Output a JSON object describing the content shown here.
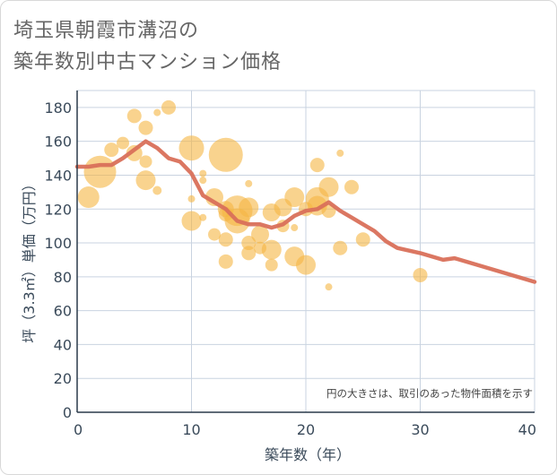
{
  "chart_data": {
    "type": "scatter",
    "title_lines": [
      "埼玉県朝霞市溝沼の",
      "築年数別中古マンション価格"
    ],
    "xlabel": "築年数（年）",
    "ylabel": "坪（3.3㎡）単価（万円）",
    "xlim": [
      0,
      40
    ],
    "ylim": [
      0,
      190
    ],
    "x_ticks": [
      0,
      10,
      20,
      30,
      40
    ],
    "y_ticks": [
      0,
      20,
      40,
      60,
      80,
      100,
      120,
      140,
      160,
      180
    ],
    "grid": true,
    "note": "円の大きさは、取引のあった物件面積を示す",
    "colors": {
      "bubble": "#f5b642",
      "line": "#d9705a",
      "grid": "#c9d3e0",
      "axis": "#2a3a4a"
    },
    "trend_line": [
      [
        0,
        145
      ],
      [
        1,
        145
      ],
      [
        2,
        146
      ],
      [
        3,
        146
      ],
      [
        4,
        150
      ],
      [
        5,
        155
      ],
      [
        6,
        160
      ],
      [
        7,
        156
      ],
      [
        8,
        150
      ],
      [
        9,
        148
      ],
      [
        10,
        141
      ],
      [
        11,
        128
      ],
      [
        12,
        124
      ],
      [
        13,
        120
      ],
      [
        14,
        113
      ],
      [
        15,
        111
      ],
      [
        16,
        111
      ],
      [
        17,
        109
      ],
      [
        18,
        111
      ],
      [
        19,
        116
      ],
      [
        20,
        119
      ],
      [
        21,
        120
      ],
      [
        22,
        124
      ],
      [
        23,
        119
      ],
      [
        24,
        115
      ],
      [
        25,
        111
      ],
      [
        26,
        107
      ],
      [
        27,
        101
      ],
      [
        28,
        97
      ],
      [
        30,
        94
      ],
      [
        32,
        90
      ],
      [
        33,
        91
      ],
      [
        35,
        87
      ],
      [
        40,
        77
      ]
    ],
    "points": [
      {
        "x": 1,
        "y": 127,
        "r": 12
      },
      {
        "x": 2,
        "y": 142,
        "r": 18
      },
      {
        "x": 3,
        "y": 155,
        "r": 8
      },
      {
        "x": 4,
        "y": 159,
        "r": 7
      },
      {
        "x": 5,
        "y": 175,
        "r": 8
      },
      {
        "x": 5,
        "y": 153,
        "r": 9
      },
      {
        "x": 6,
        "y": 168,
        "r": 8
      },
      {
        "x": 6,
        "y": 148,
        "r": 7
      },
      {
        "x": 6,
        "y": 137,
        "r": 11
      },
      {
        "x": 7,
        "y": 177,
        "r": 4
      },
      {
        "x": 7,
        "y": 131,
        "r": 5
      },
      {
        "x": 8,
        "y": 180,
        "r": 8
      },
      {
        "x": 10,
        "y": 156,
        "r": 14
      },
      {
        "x": 10,
        "y": 126,
        "r": 4
      },
      {
        "x": 10,
        "y": 113,
        "r": 11
      },
      {
        "x": 11,
        "y": 141,
        "r": 4
      },
      {
        "x": 11,
        "y": 137,
        "r": 4
      },
      {
        "x": 11,
        "y": 115,
        "r": 4
      },
      {
        "x": 12,
        "y": 127,
        "r": 10
      },
      {
        "x": 12,
        "y": 105,
        "r": 7
      },
      {
        "x": 13,
        "y": 152,
        "r": 19
      },
      {
        "x": 13,
        "y": 120,
        "r": 9
      },
      {
        "x": 13,
        "y": 117,
        "r": 8
      },
      {
        "x": 13,
        "y": 102,
        "r": 8
      },
      {
        "x": 13,
        "y": 89,
        "r": 8
      },
      {
        "x": 14,
        "y": 119,
        "r": 17
      },
      {
        "x": 14,
        "y": 113,
        "r": 14
      },
      {
        "x": 15,
        "y": 135,
        "r": 4
      },
      {
        "x": 15,
        "y": 121,
        "r": 11
      },
      {
        "x": 15,
        "y": 100,
        "r": 8
      },
      {
        "x": 15,
        "y": 94,
        "r": 8
      },
      {
        "x": 16,
        "y": 105,
        "r": 10
      },
      {
        "x": 16,
        "y": 97,
        "r": 7
      },
      {
        "x": 17,
        "y": 118,
        "r": 10
      },
      {
        "x": 17,
        "y": 96,
        "r": 11
      },
      {
        "x": 17,
        "y": 87,
        "r": 7
      },
      {
        "x": 18,
        "y": 121,
        "r": 10
      },
      {
        "x": 18,
        "y": 110,
        "r": 7
      },
      {
        "x": 19,
        "y": 127,
        "r": 11
      },
      {
        "x": 19,
        "y": 109,
        "r": 4
      },
      {
        "x": 19,
        "y": 92,
        "r": 11
      },
      {
        "x": 20,
        "y": 120,
        "r": 8
      },
      {
        "x": 20,
        "y": 87,
        "r": 11
      },
      {
        "x": 21,
        "y": 146,
        "r": 8
      },
      {
        "x": 21,
        "y": 126,
        "r": 13
      },
      {
        "x": 21,
        "y": 122,
        "r": 11
      },
      {
        "x": 22,
        "y": 133,
        "r": 11
      },
      {
        "x": 22,
        "y": 119,
        "r": 8
      },
      {
        "x": 22,
        "y": 74,
        "r": 4
      },
      {
        "x": 23,
        "y": 153,
        "r": 4
      },
      {
        "x": 23,
        "y": 97,
        "r": 8
      },
      {
        "x": 24,
        "y": 133,
        "r": 8
      },
      {
        "x": 25,
        "y": 102,
        "r": 8
      },
      {
        "x": 30,
        "y": 81,
        "r": 8
      }
    ]
  }
}
